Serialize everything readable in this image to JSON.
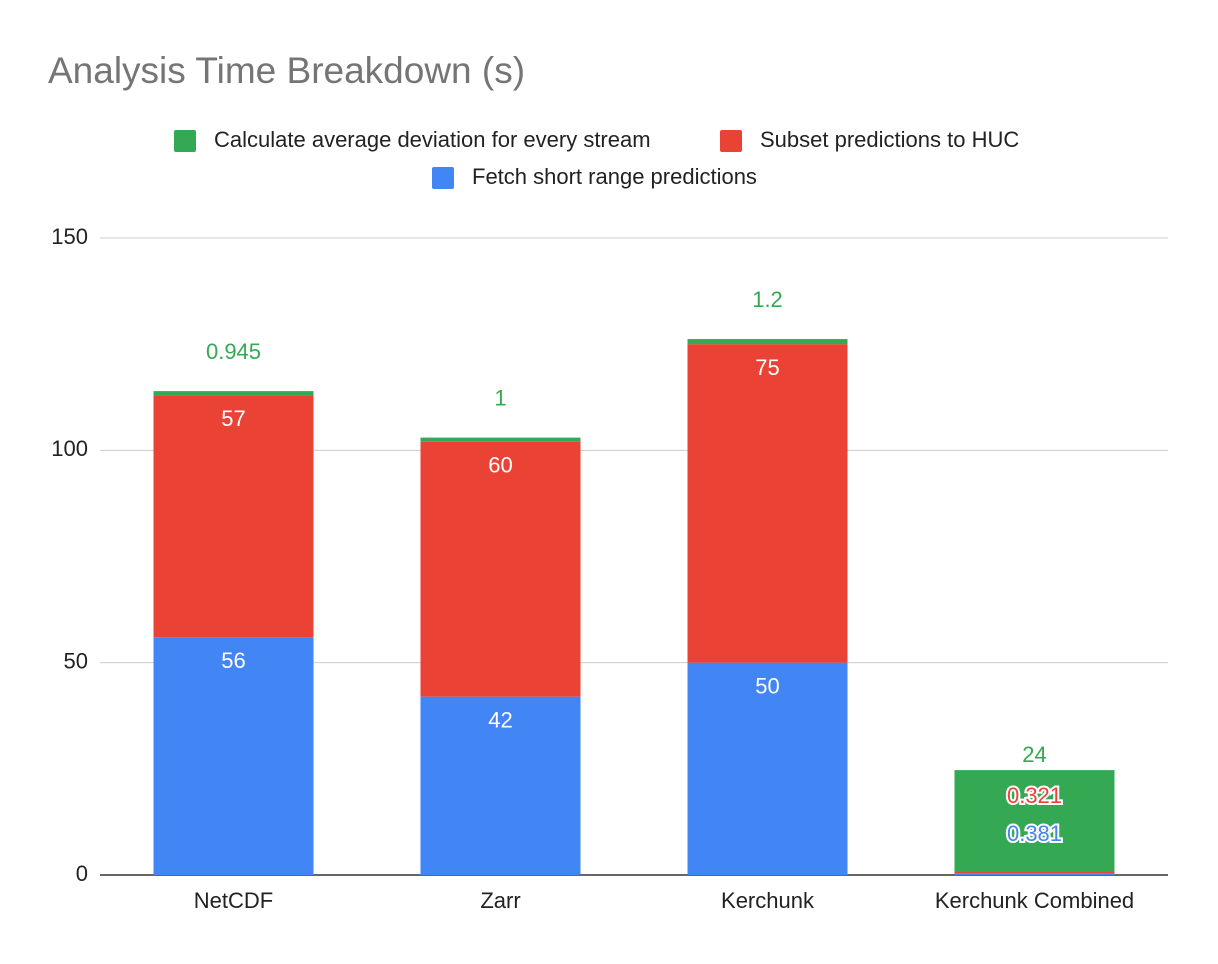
{
  "chart_data": {
    "type": "stacked_bar",
    "title": "Analysis Time Breakdown (s)",
    "categories": [
      "NetCDF",
      "Zarr",
      "Kerchunk",
      "Kerchunk Combined"
    ],
    "series": [
      {
        "name": "Fetch short range predictions",
        "color": "#4285f4",
        "values": [
          56,
          42,
          50,
          0.381
        ]
      },
      {
        "name": "Subset predictions to HUC",
        "color": "#ea4335",
        "values": [
          57,
          60,
          75,
          0.321
        ]
      },
      {
        "name": "Calculate average deviation for every stream",
        "color": "#34a853",
        "values": [
          0.945,
          1,
          1.2,
          24
        ]
      }
    ],
    "ylim": [
      0,
      150
    ],
    "yticks": [
      0,
      50,
      100,
      150
    ],
    "grid": true,
    "legend": "top"
  }
}
